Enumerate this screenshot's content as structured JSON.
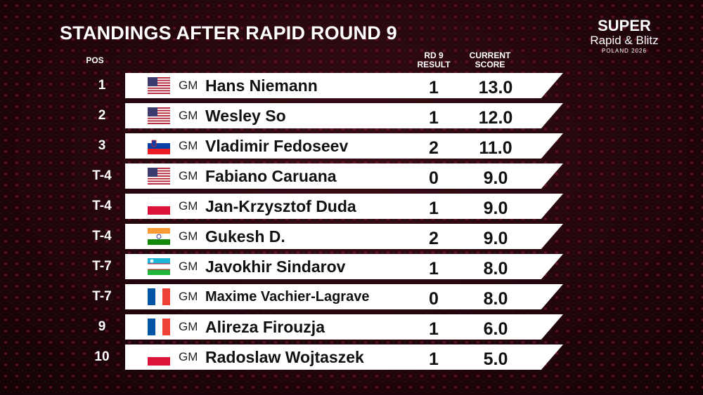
{
  "header": {
    "title": "STANDINGS AFTER RAPID ROUND 9",
    "columns": {
      "pos": "POS",
      "result": [
        "RD 9",
        "RESULT"
      ],
      "score": [
        "CURRENT",
        "SCORE"
      ]
    },
    "logo": [
      "SUPER",
      "Rapid & Blitz",
      "POLAND 2026"
    ]
  },
  "table": {
    "rows": [
      [
        "1",
        "GM",
        "Hans Niemann",
        "1",
        "13.0"
      ],
      [
        "2",
        "GM",
        "Wesley So",
        "1",
        "12.0"
      ],
      [
        "3",
        "GM",
        "Vladimir Fedoseev",
        "2",
        "11.0"
      ],
      [
        "T-4",
        "GM",
        "Fabiano Caruana",
        "0",
        "9.0"
      ],
      [
        "T-4",
        "GM",
        "Jan-Krzysztof Duda",
        "1",
        "9.0"
      ],
      [
        "T-4",
        "GM",
        "Gukesh D.",
        "2",
        "9.0"
      ],
      [
        "T-7",
        "GM",
        "Javokhir Sindarov",
        "1",
        "8.0"
      ],
      [
        "T-7",
        "GM",
        "Maxime Vachier-Lagrave",
        "0",
        "8.0"
      ],
      [
        "9",
        "GM",
        "Alireza Firouzja",
        "1",
        "6.0"
      ],
      [
        "10",
        "GM",
        "Radoslaw Wojtaszek",
        "1",
        "5.0"
      ]
    ]
  }
}
